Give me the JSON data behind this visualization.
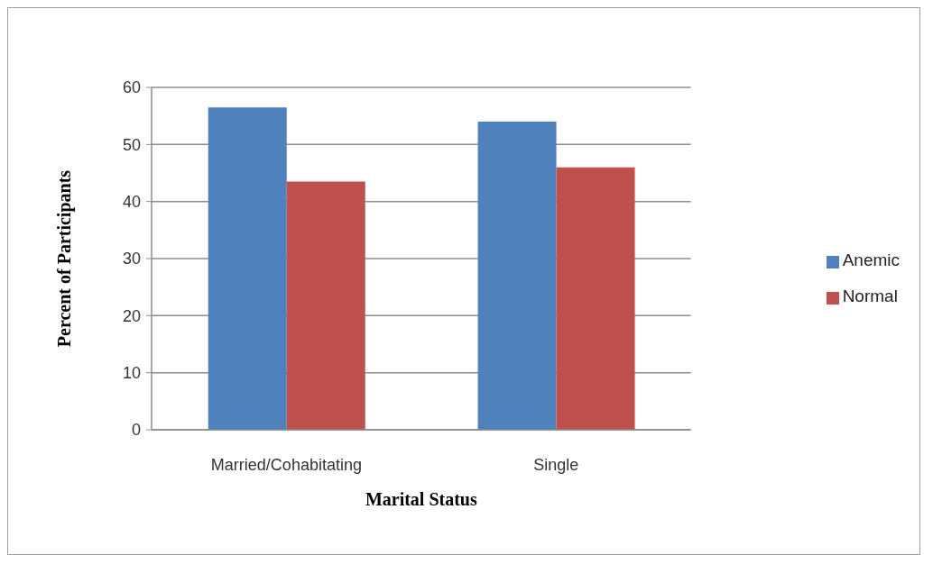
{
  "chart_data": {
    "type": "bar",
    "xlabel": "Marital Status",
    "ylabel": "Percent of Participants",
    "categories": [
      "Married/Cohabitating",
      "Single"
    ],
    "series": [
      {
        "name": "Anemic",
        "color": "#4f81bd",
        "values": [
          56.5,
          54
        ]
      },
      {
        "name": "Normal",
        "color": "#c0504d",
        "values": [
          43.5,
          46
        ]
      }
    ],
    "ylim": [
      0,
      60
    ],
    "yticks": [
      0,
      10,
      20,
      30,
      40,
      50,
      60
    ],
    "grid": "y",
    "legend": "right"
  }
}
